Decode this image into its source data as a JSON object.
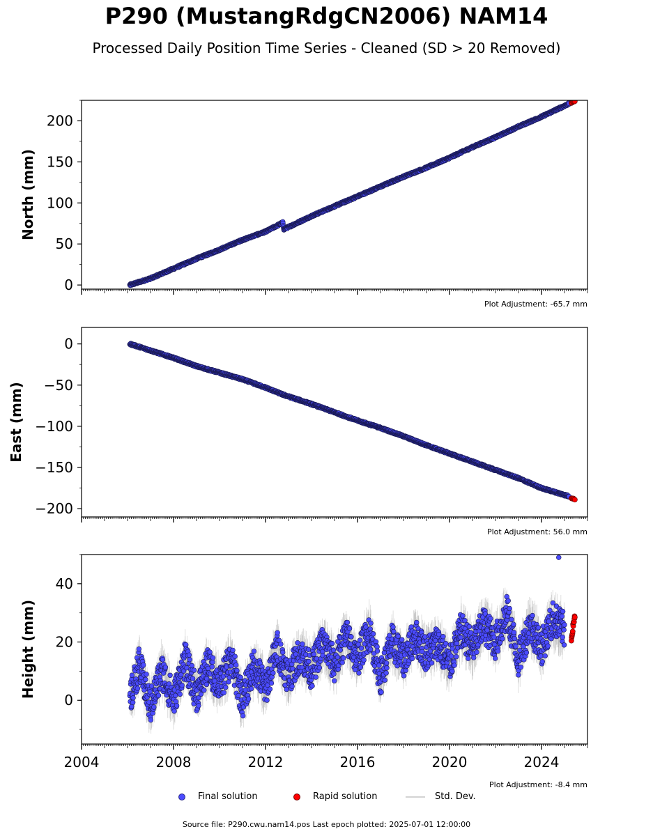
{
  "title": "P290 (MustangRdgCN2006) NAM14",
  "subtitle": "Processed Daily Position Time Series - Cleaned (SD > 20 Removed)",
  "legend": {
    "final": "Final solution",
    "rapid": "Rapid solution",
    "std": "Std. Dev."
  },
  "footer": "Source file: P290.cwu.nam14.pos  Last epoch plotted: 2025-07-01 12:00:00",
  "colors": {
    "final": "#4b4bff",
    "final_edge": "#1a1a55",
    "rapid": "#ff0000",
    "std": "#a9a9a9"
  },
  "chart_data": [
    {
      "type": "scatter",
      "ylabel": "North (mm)",
      "xlim": [
        2004,
        2026
      ],
      "ylim": [
        -5,
        225
      ],
      "yticks": [
        0,
        50,
        100,
        150,
        200
      ],
      "show_xtick_labels": false,
      "adjustment": "Plot Adjustment: -65.7 mm",
      "series": [
        {
          "name": "Final solution",
          "x": [
            2006.1,
            2007.0,
            2008.0,
            2009.0,
            2010.0,
            2011.0,
            2012.0,
            2012.75,
            2012.8,
            2014.0,
            2015.0,
            2016.0,
            2017.0,
            2018.0,
            2019.0,
            2020.0,
            2021.0,
            2022.0,
            2023.0,
            2024.0,
            2025.2
          ],
          "y": [
            0,
            8,
            20,
            32,
            43,
            55,
            65,
            76,
            68,
            84,
            96,
            108,
            120,
            132,
            143,
            155,
            168,
            180,
            193,
            205,
            221
          ]
        },
        {
          "name": "Rapid solution",
          "x": [
            2025.3,
            2025.4,
            2025.45
          ],
          "y": [
            222,
            223,
            224
          ]
        }
      ]
    },
    {
      "type": "scatter",
      "ylabel": "East (mm)",
      "xlim": [
        2004,
        2026
      ],
      "ylim": [
        -210,
        20
      ],
      "yticks": [
        0,
        -50,
        -100,
        -150,
        -200
      ],
      "show_xtick_labels": false,
      "adjustment": "Plot Adjustment: 56.0 mm",
      "series": [
        {
          "name": "Final solution",
          "x": [
            2006.1,
            2007.0,
            2008.0,
            2009.0,
            2010.0,
            2011.0,
            2012.0,
            2012.8,
            2014.0,
            2015.0,
            2016.0,
            2017.0,
            2018.0,
            2019.0,
            2020.0,
            2021.0,
            2022.0,
            2023.0,
            2024.0,
            2025.2
          ],
          "y": [
            0,
            -8,
            -17,
            -27,
            -35,
            -43,
            -53,
            -62,
            -73,
            -83,
            -93,
            -102,
            -112,
            -123,
            -133,
            -143,
            -153,
            -163,
            -175,
            -185
          ]
        },
        {
          "name": "Rapid solution",
          "x": [
            2025.3,
            2025.4,
            2025.45
          ],
          "y": [
            -187,
            -188,
            -189
          ]
        }
      ]
    },
    {
      "type": "scatter",
      "ylabel": "Height (mm)",
      "xlim": [
        2004,
        2026
      ],
      "ylim": [
        -15,
        50
      ],
      "yticks": [
        0,
        20,
        40
      ],
      "xticks": [
        2004,
        2008,
        2012,
        2016,
        2020,
        2024
      ],
      "show_xtick_labels": true,
      "adjustment": "Plot Adjustment: -8.4 mm",
      "series": [
        {
          "name": "Final solution",
          "x": [
            2006.1,
            2006.5,
            2007.0,
            2007.5,
            2008.0,
            2008.5,
            2009.0,
            2009.5,
            2010.0,
            2010.5,
            2011.0,
            2011.5,
            2012.0,
            2012.5,
            2013.0,
            2013.5,
            2014.0,
            2014.5,
            2015.0,
            2015.5,
            2016.0,
            2016.5,
            2017.0,
            2017.5,
            2018.0,
            2018.5,
            2019.0,
            2019.5,
            2020.0,
            2020.5,
            2021.0,
            2021.5,
            2022.0,
            2022.5,
            2023.0,
            2023.5,
            2024.0,
            2024.5,
            2025.0
          ],
          "y": [
            0,
            12,
            -2,
            10,
            0,
            14,
            2,
            12,
            5,
            14,
            0,
            12,
            4,
            18,
            8,
            16,
            10,
            20,
            12,
            22,
            14,
            24,
            8,
            20,
            14,
            22,
            16,
            20,
            12,
            24,
            18,
            26,
            20,
            30,
            14,
            26,
            18,
            28,
            24
          ],
          "noise": 6
        },
        {
          "name": "Rapid solution",
          "x": [
            2025.3,
            2025.35,
            2025.4,
            2025.45
          ],
          "y": [
            21,
            24,
            27,
            29
          ]
        },
        {
          "name": "Std. Dev.",
          "approx_half_width": 4
        }
      ],
      "outliers": [
        {
          "x": 2024.75,
          "y": 49
        }
      ]
    }
  ]
}
